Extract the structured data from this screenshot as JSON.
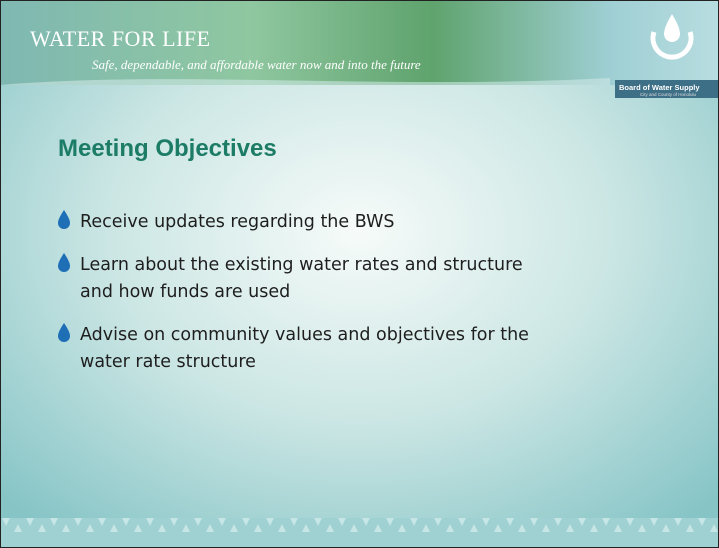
{
  "header": {
    "brand": "WATER FOR LIFE",
    "tagline": "Safe, dependable, and affordable water now and into the future",
    "logo_name": "Board of Water Supply",
    "logo_sub": "City and County of Honolulu"
  },
  "slide": {
    "title": "Meeting Objectives",
    "bullets": [
      [
        "Receive updates regarding the BWS"
      ],
      [
        "Learn about the existing water rates and structure",
        "and how funds are used"
      ],
      [
        "Advise on community values and objectives for the",
        "water rate structure"
      ]
    ]
  }
}
